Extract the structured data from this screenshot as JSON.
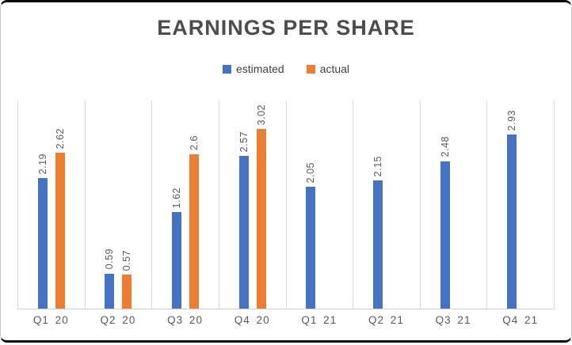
{
  "chart_data": {
    "type": "bar",
    "title": "EARNINGS PER SHARE",
    "categories": [
      "Q1 20",
      "Q2 20",
      "Q3 20",
      "Q4 20",
      "Q1 21",
      "Q2 21",
      "Q3 21",
      "Q4 21"
    ],
    "series": [
      {
        "name": "estimated",
        "color": "#4472C4",
        "values": [
          2.19,
          0.59,
          1.62,
          2.57,
          2.05,
          2.15,
          2.48,
          2.93
        ]
      },
      {
        "name": "actual",
        "color": "#ED7D31",
        "values": [
          2.62,
          0.57,
          2.6,
          3.02,
          null,
          null,
          null,
          null
        ]
      }
    ],
    "ylim": [
      0,
      3.5
    ],
    "value_labels": true,
    "value_label_rotation": "vertical-bottom-to-top",
    "legend_position": "top-center",
    "grid": "vertical-category-separators-only",
    "colors": {
      "gridline": "#D9D9D9",
      "axis_line": "#D0CECE",
      "value_label_text": "#595959",
      "axis_label_text": "#595959",
      "title_text": "#4D4D4D",
      "legend_text": "#404040",
      "background": "#FFFFFF",
      "frame_border": "#0B0B0B"
    }
  }
}
